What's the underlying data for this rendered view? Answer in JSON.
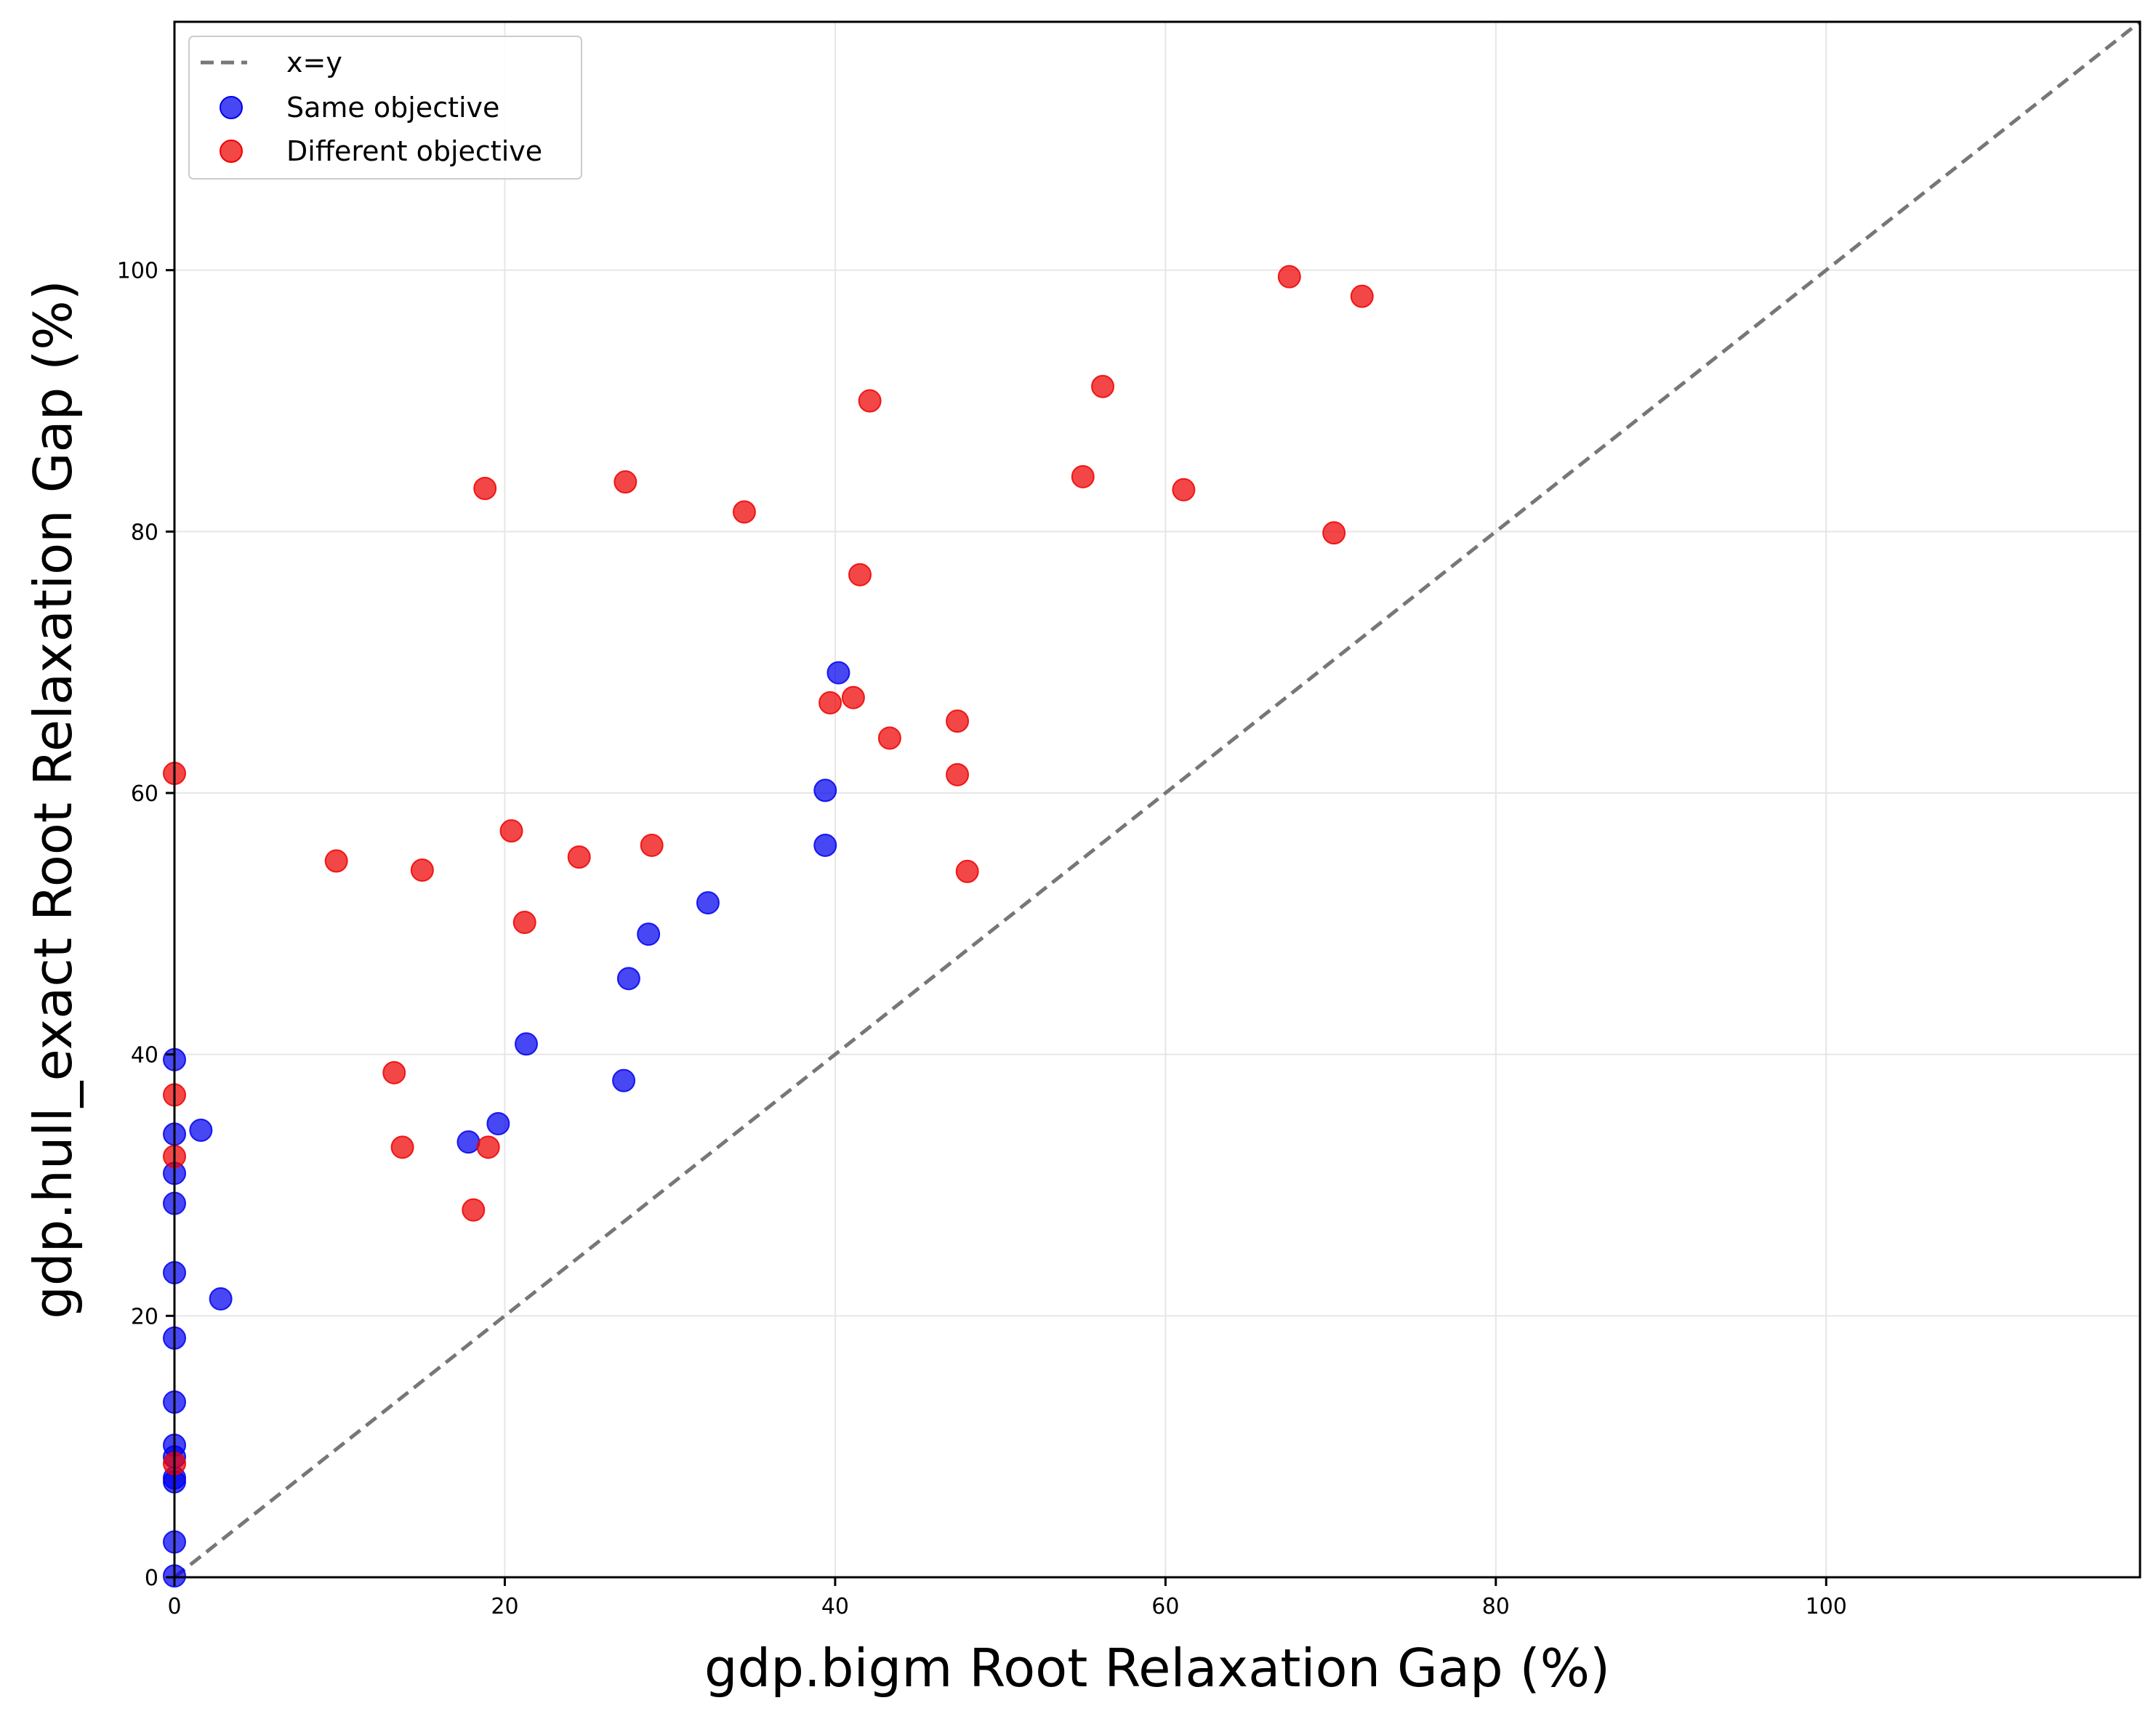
{
  "chart_data": {
    "type": "scatter",
    "xlabel": "gdp.bigm Root Relaxation Gap (%)",
    "ylabel": "gdp.hull_exact Root Relaxation Gap (%)",
    "xlim": [
      0,
      119
    ],
    "ylim": [
      0,
      119
    ],
    "x_ticks": [
      0,
      20,
      40,
      60,
      80,
      100
    ],
    "y_ticks": [
      0,
      20,
      40,
      60,
      80,
      100
    ],
    "grid": true,
    "legend_position": "top-left",
    "reference_line": {
      "label": "x=y",
      "style": "dashed",
      "color": "#777777"
    },
    "series": [
      {
        "name": "Same objective",
        "color": "#0000ee",
        "points": [
          {
            "x": 0,
            "y": 39.6
          },
          {
            "x": 0,
            "y": 33.9
          },
          {
            "x": 0,
            "y": 30.9
          },
          {
            "x": 0,
            "y": 28.6
          },
          {
            "x": 0,
            "y": 23.3
          },
          {
            "x": 0,
            "y": 18.3
          },
          {
            "x": 0,
            "y": 13.4
          },
          {
            "x": 0,
            "y": 10.1
          },
          {
            "x": 0,
            "y": 9.2
          },
          {
            "x": 0,
            "y": 7.6
          },
          {
            "x": 0,
            "y": 7.3
          },
          {
            "x": 0,
            "y": 2.7
          },
          {
            "x": 0,
            "y": 0.1
          },
          {
            "x": 1.6,
            "y": 34.2
          },
          {
            "x": 2.8,
            "y": 21.3
          },
          {
            "x": 17.8,
            "y": 33.3
          },
          {
            "x": 19.6,
            "y": 34.7
          },
          {
            "x": 21.3,
            "y": 40.8
          },
          {
            "x": 27.2,
            "y": 38.0
          },
          {
            "x": 27.5,
            "y": 45.8
          },
          {
            "x": 28.7,
            "y": 49.2
          },
          {
            "x": 32.3,
            "y": 51.6
          },
          {
            "x": 39.4,
            "y": 60.2
          },
          {
            "x": 39.4,
            "y": 56.0
          },
          {
            "x": 40.2,
            "y": 69.2
          }
        ]
      },
      {
        "name": "Different objective",
        "color": "#ee0000",
        "points": [
          {
            "x": 0,
            "y": 61.5
          },
          {
            "x": 0,
            "y": 36.9
          },
          {
            "x": 0,
            "y": 32.2
          },
          {
            "x": 0,
            "y": 8.7
          },
          {
            "x": 9.8,
            "y": 54.8
          },
          {
            "x": 13.3,
            "y": 38.6
          },
          {
            "x": 13.8,
            "y": 32.9
          },
          {
            "x": 15.0,
            "y": 54.1
          },
          {
            "x": 18.1,
            "y": 28.1
          },
          {
            "x": 18.8,
            "y": 83.3
          },
          {
            "x": 19.0,
            "y": 32.9
          },
          {
            "x": 20.4,
            "y": 57.1
          },
          {
            "x": 21.2,
            "y": 50.1
          },
          {
            "x": 24.5,
            "y": 55.1
          },
          {
            "x": 27.3,
            "y": 83.8
          },
          {
            "x": 28.9,
            "y": 56.0
          },
          {
            "x": 34.5,
            "y": 81.5
          },
          {
            "x": 39.7,
            "y": 66.9
          },
          {
            "x": 41.1,
            "y": 67.3
          },
          {
            "x": 41.5,
            "y": 76.7
          },
          {
            "x": 42.1,
            "y": 90.0
          },
          {
            "x": 43.3,
            "y": 64.2
          },
          {
            "x": 47.4,
            "y": 65.5
          },
          {
            "x": 47.4,
            "y": 61.4
          },
          {
            "x": 48.0,
            "y": 54.0
          },
          {
            "x": 55.0,
            "y": 84.2
          },
          {
            "x": 56.2,
            "y": 91.1
          },
          {
            "x": 61.1,
            "y": 83.2
          },
          {
            "x": 67.5,
            "y": 99.5
          },
          {
            "x": 70.2,
            "y": 79.9
          },
          {
            "x": 71.9,
            "y": 98.0
          }
        ]
      }
    ]
  }
}
